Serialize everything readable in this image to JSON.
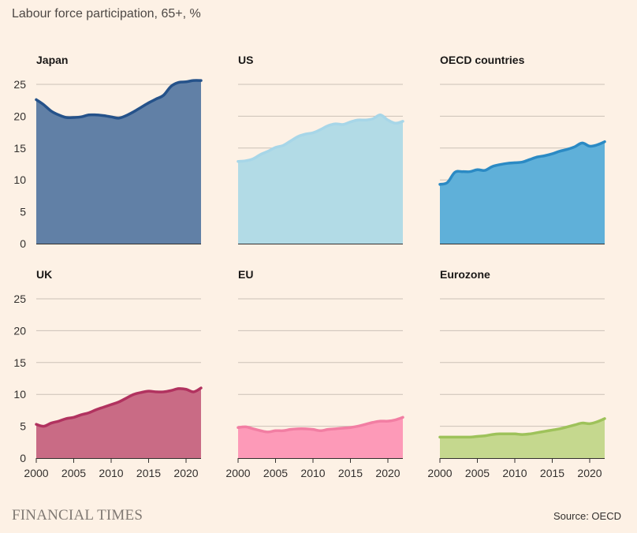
{
  "title": "Labour force participation, 65+, %",
  "brand": "FINANCIAL TIMES",
  "source": "Source: OECD",
  "chart_data": {
    "type": "area",
    "x": [
      2000,
      2001,
      2002,
      2003,
      2004,
      2005,
      2006,
      2007,
      2008,
      2009,
      2010,
      2011,
      2012,
      2013,
      2014,
      2015,
      2016,
      2017,
      2018,
      2019,
      2020,
      2021,
      2022
    ],
    "xticks": [
      "2000",
      "2005",
      "2010",
      "2015",
      "2020"
    ],
    "yticks": [
      "0",
      "5",
      "10",
      "15",
      "20",
      "25"
    ],
    "ylim": [
      0,
      25
    ],
    "xlim": [
      2000,
      2022
    ],
    "grid": true,
    "series": [
      {
        "name": "Japan",
        "color": "#25528a",
        "fill": "#6180a6",
        "values": [
          22.6,
          21.8,
          20.8,
          20.2,
          19.8,
          19.8,
          19.9,
          20.2,
          20.2,
          20.1,
          19.9,
          19.7,
          20.1,
          20.7,
          21.4,
          22.1,
          22.7,
          23.3,
          24.7,
          25.3,
          25.4,
          25.6,
          25.6
        ]
      },
      {
        "name": "US",
        "color": "#a7d6e8",
        "fill": "#b2dbe6",
        "values": [
          12.9,
          13.0,
          13.3,
          14.0,
          14.5,
          15.1,
          15.4,
          16.1,
          16.8,
          17.2,
          17.4,
          17.9,
          18.5,
          18.8,
          18.7,
          19.1,
          19.4,
          19.4,
          19.6,
          20.2,
          19.4,
          18.9,
          19.2
        ]
      },
      {
        "name": "OECD countries",
        "color": "#2b8ac4",
        "fill": "#5fb0d9",
        "values": [
          9.3,
          9.6,
          11.2,
          11.3,
          11.3,
          11.6,
          11.5,
          12.1,
          12.4,
          12.6,
          12.7,
          12.8,
          13.2,
          13.6,
          13.8,
          14.1,
          14.5,
          14.8,
          15.2,
          15.8,
          15.3,
          15.5,
          16.0
        ]
      },
      {
        "name": "UK",
        "color": "#b1325f",
        "fill": "#c96b85",
        "values": [
          5.3,
          5.0,
          5.5,
          5.8,
          6.2,
          6.4,
          6.8,
          7.1,
          7.6,
          8.0,
          8.4,
          8.8,
          9.4,
          10.0,
          10.3,
          10.5,
          10.4,
          10.4,
          10.6,
          10.9,
          10.8,
          10.4,
          11.0
        ]
      },
      {
        "name": "EU",
        "color": "#f27ea3",
        "fill": "#fd9ab8",
        "values": [
          4.8,
          4.9,
          4.6,
          4.3,
          4.1,
          4.3,
          4.3,
          4.5,
          4.6,
          4.6,
          4.5,
          4.3,
          4.5,
          4.6,
          4.7,
          4.8,
          5.0,
          5.3,
          5.6,
          5.8,
          5.8,
          6.0,
          6.4
        ]
      },
      {
        "name": "Eurozone",
        "color": "#9ec25a",
        "fill": "#c5d88e",
        "values": [
          3.3,
          3.3,
          3.3,
          3.3,
          3.3,
          3.4,
          3.5,
          3.7,
          3.8,
          3.8,
          3.8,
          3.7,
          3.8,
          4.0,
          4.2,
          4.4,
          4.6,
          4.9,
          5.2,
          5.5,
          5.4,
          5.7,
          6.2
        ]
      }
    ]
  }
}
